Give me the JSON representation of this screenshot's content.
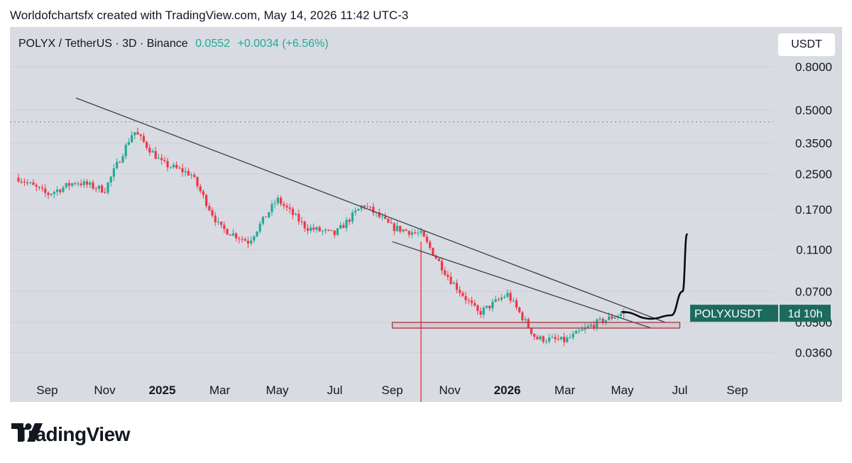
{
  "header": {
    "attribution": "Worldofchartsfx created with TradingView.com, May 14, 2026 11:42 UTC-3"
  },
  "legend": {
    "symbol": "POLYX / TetherUS · 3D · Binance",
    "last": "0.0552",
    "change": "+0.0034 (+6.56%)"
  },
  "unit_button": "USDT",
  "price_tag": {
    "symbol": "POLYXUSDT",
    "countdown": "1d 10h"
  },
  "brand": {
    "name": "TradingView"
  },
  "colors": {
    "up": "#22ab94",
    "down": "#f23645",
    "tag_bg": "#1b6b5c",
    "box": "#9b3a46",
    "background": "#d8dbe2"
  },
  "chart_data": {
    "type": "candlestick",
    "title": "POLYX / TetherUS · 3D · Binance",
    "y_scale": "log",
    "y_ticks": [
      "0.8000",
      "0.5000",
      "0.3500",
      "0.2500",
      "0.1700",
      "0.1100",
      "0.0700",
      "0.0500",
      "0.0360"
    ],
    "x_ticks": [
      "Sep",
      "Nov",
      "2025",
      "Mar",
      "May",
      "Jul",
      "Sep",
      "Nov",
      "2026",
      "Mar",
      "May",
      "Jul",
      "Sep"
    ],
    "bold_x_ticks": [
      "2025",
      "2026"
    ],
    "price_series": {
      "dates": [
        "2024-08",
        "2024-09",
        "2024-10",
        "2024-11",
        "2024-12",
        "2025-01",
        "2025-02",
        "2025-03",
        "2025-04",
        "2025-05",
        "2025-06",
        "2025-07",
        "2025-08",
        "2025-09",
        "2025-10",
        "2025-11",
        "2025-12",
        "2026-01",
        "2026-02",
        "2026-03",
        "2026-04",
        "2026-05"
      ],
      "close": [
        0.24,
        0.2,
        0.23,
        0.21,
        0.4,
        0.28,
        0.25,
        0.14,
        0.12,
        0.19,
        0.14,
        0.13,
        0.18,
        0.14,
        0.13,
        0.08,
        0.055,
        0.068,
        0.042,
        0.041,
        0.049,
        0.0552
      ]
    },
    "resistance_line": {
      "start": {
        "date": "2024-10",
        "price": 0.57
      },
      "end": {
        "date": "2026-06",
        "price": 0.05
      }
    },
    "lower_trendline": {
      "start": {
        "date": "2025-09",
        "price": 0.12
      },
      "end": {
        "date": "2026-06",
        "price": 0.047
      }
    },
    "support_zone": {
      "from": "2025-09",
      "to": "2026-07",
      "low": 0.047,
      "high": 0.05
    },
    "previous_high": 0.44,
    "projection": [
      "2026-05",
      "2026-06",
      "2026-07",
      "2026-07",
      "2026-07"
    ],
    "projection_prices": [
      0.056,
      0.052,
      0.054,
      0.07,
      0.13
    ]
  }
}
